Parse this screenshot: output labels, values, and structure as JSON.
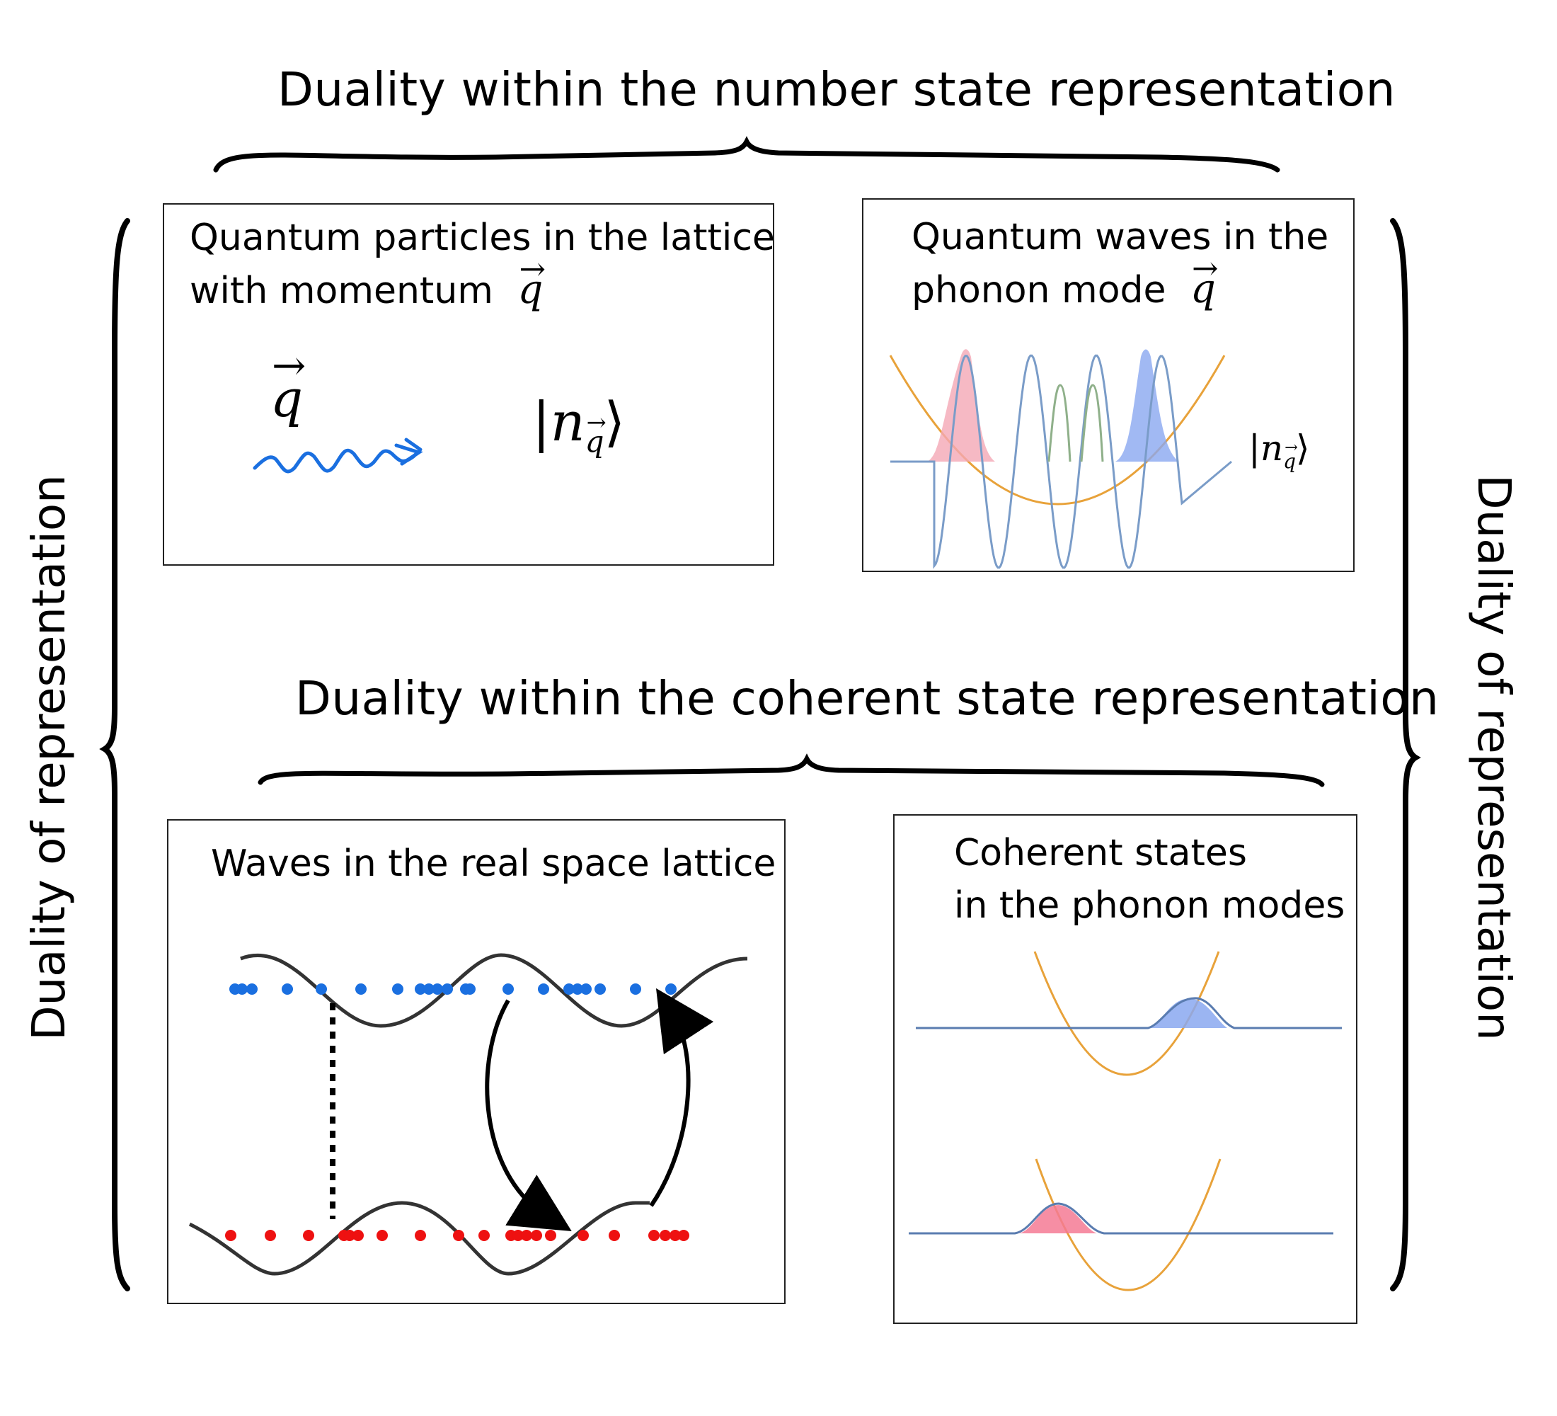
{
  "headings": {
    "top": "Duality within the number state representation",
    "middle": "Duality within the coherent state representation",
    "left": "Duality of representation",
    "right": "Duality of representation"
  },
  "panels": {
    "particles": {
      "title_line1": "Quantum particles in the lattice",
      "title_line2": "with momentum",
      "symbol_q": "q",
      "ket": "|n",
      "ket_sub": "q",
      "ket_close": "⟩"
    },
    "waves": {
      "title_line1": "Quantum waves in the",
      "title_line2": "phonon mode",
      "symbol_q": "q",
      "ket": "|n",
      "ket_sub": "q",
      "ket_close": "⟩"
    },
    "lattice": {
      "title": "Waves in the real space lattice"
    },
    "coherent": {
      "title_line1": "Coherent states",
      "title_line2": "in the phonon modes"
    }
  },
  "colors": {
    "blue_dots": "#1a6fe0",
    "red_dots": "#ee1111",
    "potential": "#e8a23a",
    "wave": "#7a9cc8",
    "pink_fill": "#f4a7b5",
    "blue_fill": "#8aa8f0",
    "green_wave": "#8fb08a",
    "squiggle": "#1a6fe0"
  },
  "icons": [
    "wavy-arrow-icon",
    "curved-arrow-down-icon",
    "curved-arrow-up-icon",
    "dotted-line-icon"
  ]
}
